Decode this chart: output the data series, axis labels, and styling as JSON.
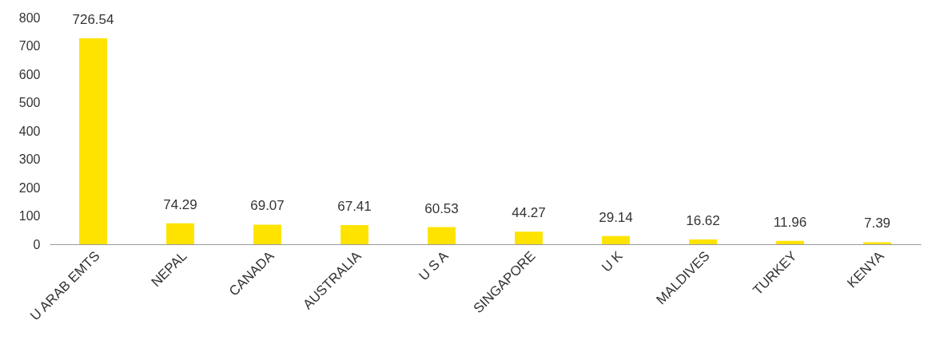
{
  "chart_data": {
    "type": "bar",
    "categories": [
      "U ARAB EMTS",
      "NEPAL",
      "CANADA",
      "AUSTRALIA",
      "U S A",
      "SINGAPORE",
      "U K",
      "MALDIVES",
      "TURKEY",
      "KENYA"
    ],
    "values": [
      726.54,
      74.29,
      69.07,
      67.41,
      60.53,
      44.27,
      29.14,
      16.62,
      11.96,
      7.39
    ],
    "color": "#ffe300",
    "ylim": [
      0,
      800
    ],
    "yticks": [
      0,
      100,
      200,
      300,
      400,
      500,
      600,
      700,
      800
    ],
    "grid": false,
    "data_labels": true
  }
}
